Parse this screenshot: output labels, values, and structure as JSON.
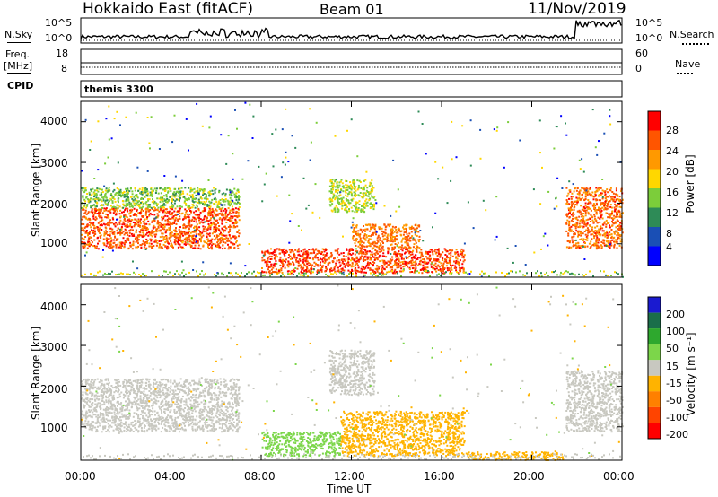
{
  "header": {
    "site": "Hokkaido East (fitACF)",
    "beam": "Beam 01",
    "date": "11/Nov/2019"
  },
  "nsky_panel": {
    "left_label": "N.Sky",
    "left_ticks": [
      "10^5",
      "10^0"
    ],
    "right_ticks": [
      "10^5",
      "10^0"
    ],
    "right_label": "N.Search"
  },
  "freq_panel": {
    "left_label_1": "Freq.",
    "left_label_2": "[MHz]",
    "left_ticks": [
      "18",
      "8"
    ],
    "right_ticks": [
      "60",
      "0"
    ],
    "right_label": "Nave"
  },
  "cpid": {
    "label": "CPID",
    "value": "themis 3300"
  },
  "x_axis": {
    "label": "Time UT",
    "ticks": [
      "00:00",
      "04:00",
      "08:00",
      "12:00",
      "16:00",
      "20:00",
      "00:00"
    ]
  },
  "power_panel": {
    "ylabel": "Slant Range [km]",
    "yticks": [
      "4000",
      "3000",
      "2000",
      "1000"
    ],
    "colorbar_label": "Power [dB]",
    "colorbar_ticks": [
      "28",
      "24",
      "20",
      "16",
      "12",
      "8",
      "4"
    ],
    "colors": [
      "#0000ff",
      "#1a4fb5",
      "#2e8b57",
      "#7ccd3a",
      "#ffd700",
      "#ff9900",
      "#ff5500",
      "#ff0000"
    ]
  },
  "velocity_panel": {
    "ylabel": "Slant Range [km]",
    "yticks": [
      "4000",
      "3000",
      "2000",
      "1000"
    ],
    "colorbar_label": "Velocity [m s⁻¹]",
    "colorbar_ticks": [
      "200",
      "100",
      "50",
      "15",
      "-15",
      "-50",
      "-100",
      "-200"
    ],
    "colors": [
      "#1a1ad0",
      "#1a6e4a",
      "#2ea82e",
      "#7cd64a",
      "#c8c8c0",
      "#ffb300",
      "#ff8000",
      "#ff4400",
      "#ff0000"
    ]
  },
  "chart_data": {
    "type": "heatmap",
    "x_range_hours": [
      0,
      24
    ],
    "y_range_km": [
      180,
      4500
    ],
    "power_regions": [
      {
        "t0": 0.0,
        "t1": 7.0,
        "r0": 900,
        "r1": 1900,
        "value_db": 26
      },
      {
        "t0": 0.0,
        "t1": 7.0,
        "r0": 1900,
        "r1": 2400,
        "value_db": 14
      },
      {
        "t0": 8.0,
        "t1": 17.0,
        "r0": 300,
        "r1": 900,
        "value_db": 27
      },
      {
        "t0": 12.0,
        "t1": 15.0,
        "r0": 900,
        "r1": 1500,
        "value_db": 24
      },
      {
        "t0": 11.0,
        "t1": 13.0,
        "r0": 1800,
        "r1": 2600,
        "value_db": 16
      },
      {
        "t0": 21.5,
        "t1": 24.0,
        "r0": 900,
        "r1": 2400,
        "value_db": 25
      }
    ],
    "velocity_regions": [
      {
        "t0": 0.0,
        "t1": 7.0,
        "r0": 900,
        "r1": 2200,
        "value_ms": 0
      },
      {
        "t0": 8.0,
        "t1": 11.5,
        "r0": 300,
        "r1": 900,
        "value_ms": 30
      },
      {
        "t0": 11.5,
        "t1": 17.0,
        "r0": 300,
        "r1": 1400,
        "value_ms": -30
      },
      {
        "t0": 11.0,
        "t1": 13.0,
        "r0": 1800,
        "r1": 2900,
        "value_ms": 0
      },
      {
        "t0": 17.0,
        "t1": 21.5,
        "r0": 200,
        "r1": 400,
        "value_ms": -40
      },
      {
        "t0": 21.5,
        "t1": 24.0,
        "r0": 900,
        "r1": 2400,
        "value_ms": 0
      }
    ]
  }
}
